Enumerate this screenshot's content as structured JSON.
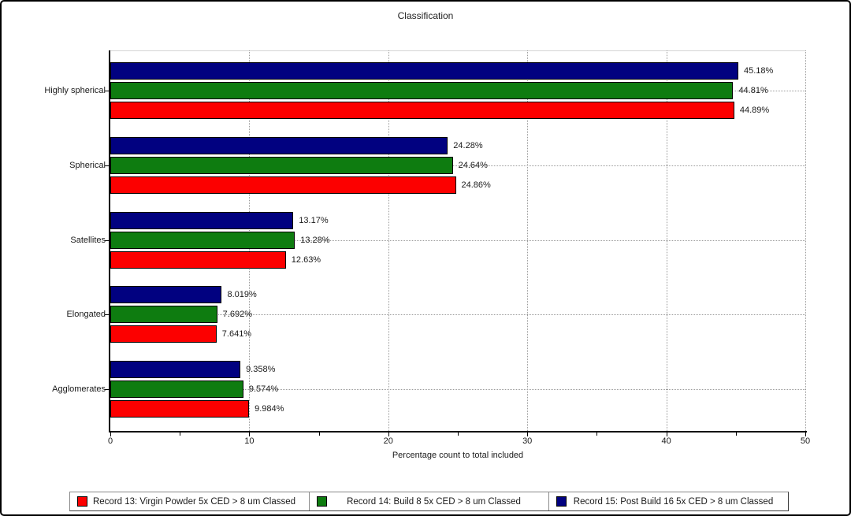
{
  "chart_data": {
    "type": "bar",
    "orientation": "horizontal",
    "title": "Classification",
    "xlabel": "Percentage count to total included",
    "categories": [
      "Highly spherical",
      "Spherical",
      "Satellites",
      "Elongated",
      "Agglomerates"
    ],
    "series": [
      {
        "name": "Record 13: Virgin Powder 5x CED > 8 um Classed",
        "color": "#fc0000",
        "values": [
          44.89,
          24.86,
          12.63,
          7.641,
          9.984
        ],
        "value_labels": [
          "44.89%",
          "24.86%",
          "12.63%",
          "7.641%",
          "9.984%"
        ]
      },
      {
        "name": "Record 14: Build 8 5x CED > 8 um Classed",
        "color": "#0e7c10",
        "values": [
          44.81,
          24.64,
          13.28,
          7.692,
          9.574
        ],
        "value_labels": [
          "44.81%",
          "24.64%",
          "13.28%",
          "7.692%",
          "9.574%"
        ]
      },
      {
        "name": "Record 15: Post Build 16 5x CED > 8 um Classed",
        "color": "#010180",
        "values": [
          45.18,
          24.28,
          13.17,
          8.019,
          9.358
        ],
        "value_labels": [
          "45.18%",
          "24.28%",
          "13.17%",
          "8.019%",
          "9.358%"
        ]
      }
    ],
    "bar_order_top_to_bottom": [
      "Record 15",
      "Record 14",
      "Record 13"
    ],
    "xlim": [
      0,
      50
    ],
    "xticks": [
      0,
      10,
      20,
      30,
      40,
      50
    ],
    "xtick_labels": [
      "0",
      "10",
      "20",
      "30",
      "40",
      "50"
    ],
    "minor_xticks": [
      5,
      15,
      25,
      35,
      45
    ],
    "grid": "dotted vertical at major x ticks; dotted horizontal at category centers",
    "legend_position": "bottom"
  }
}
